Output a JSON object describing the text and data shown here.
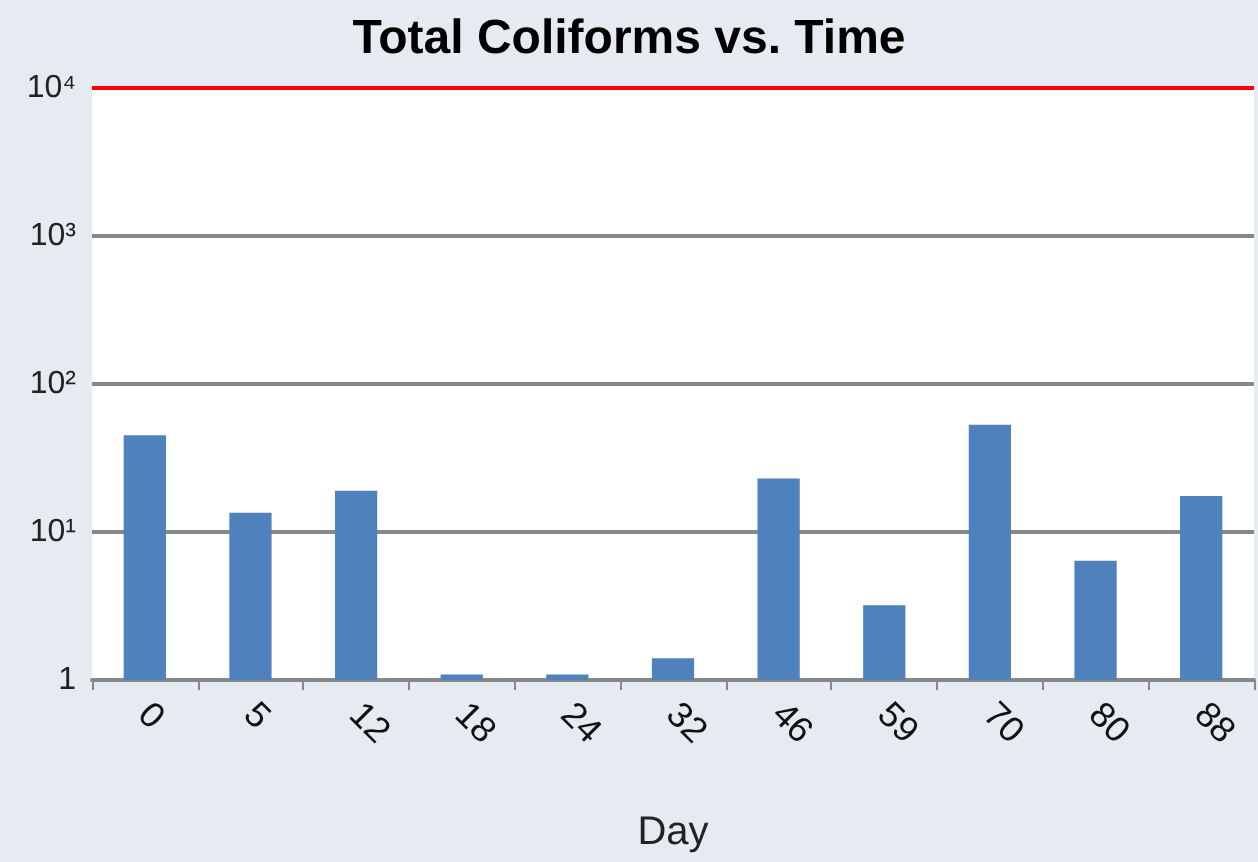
{
  "chart_data": {
    "type": "bar",
    "title": "Total Coliforms vs. Time",
    "xlabel": "Day",
    "categories": [
      "0",
      "5",
      "12",
      "18",
      "24",
      "32",
      "46",
      "59",
      "70",
      "80",
      "88"
    ],
    "values": [
      45,
      13.5,
      19,
      1.09,
      1.09,
      1.4,
      23,
      3.2,
      53,
      6.4,
      17.5
    ],
    "color": "#4f81bd",
    "log": true,
    "ylim": [
      1,
      10000
    ],
    "yticks": [
      1,
      {
        "value": 10,
        "label": "10¹"
      },
      {
        "value": 100,
        "label": "10²"
      },
      {
        "value": 1000,
        "label": "10³"
      },
      {
        "value": 10000,
        "label": "10⁴"
      }
    ],
    "grid": "y",
    "ref_lines": [
      {
        "axis": "y",
        "value": 10000,
        "color": "#ff0000"
      }
    ]
  }
}
